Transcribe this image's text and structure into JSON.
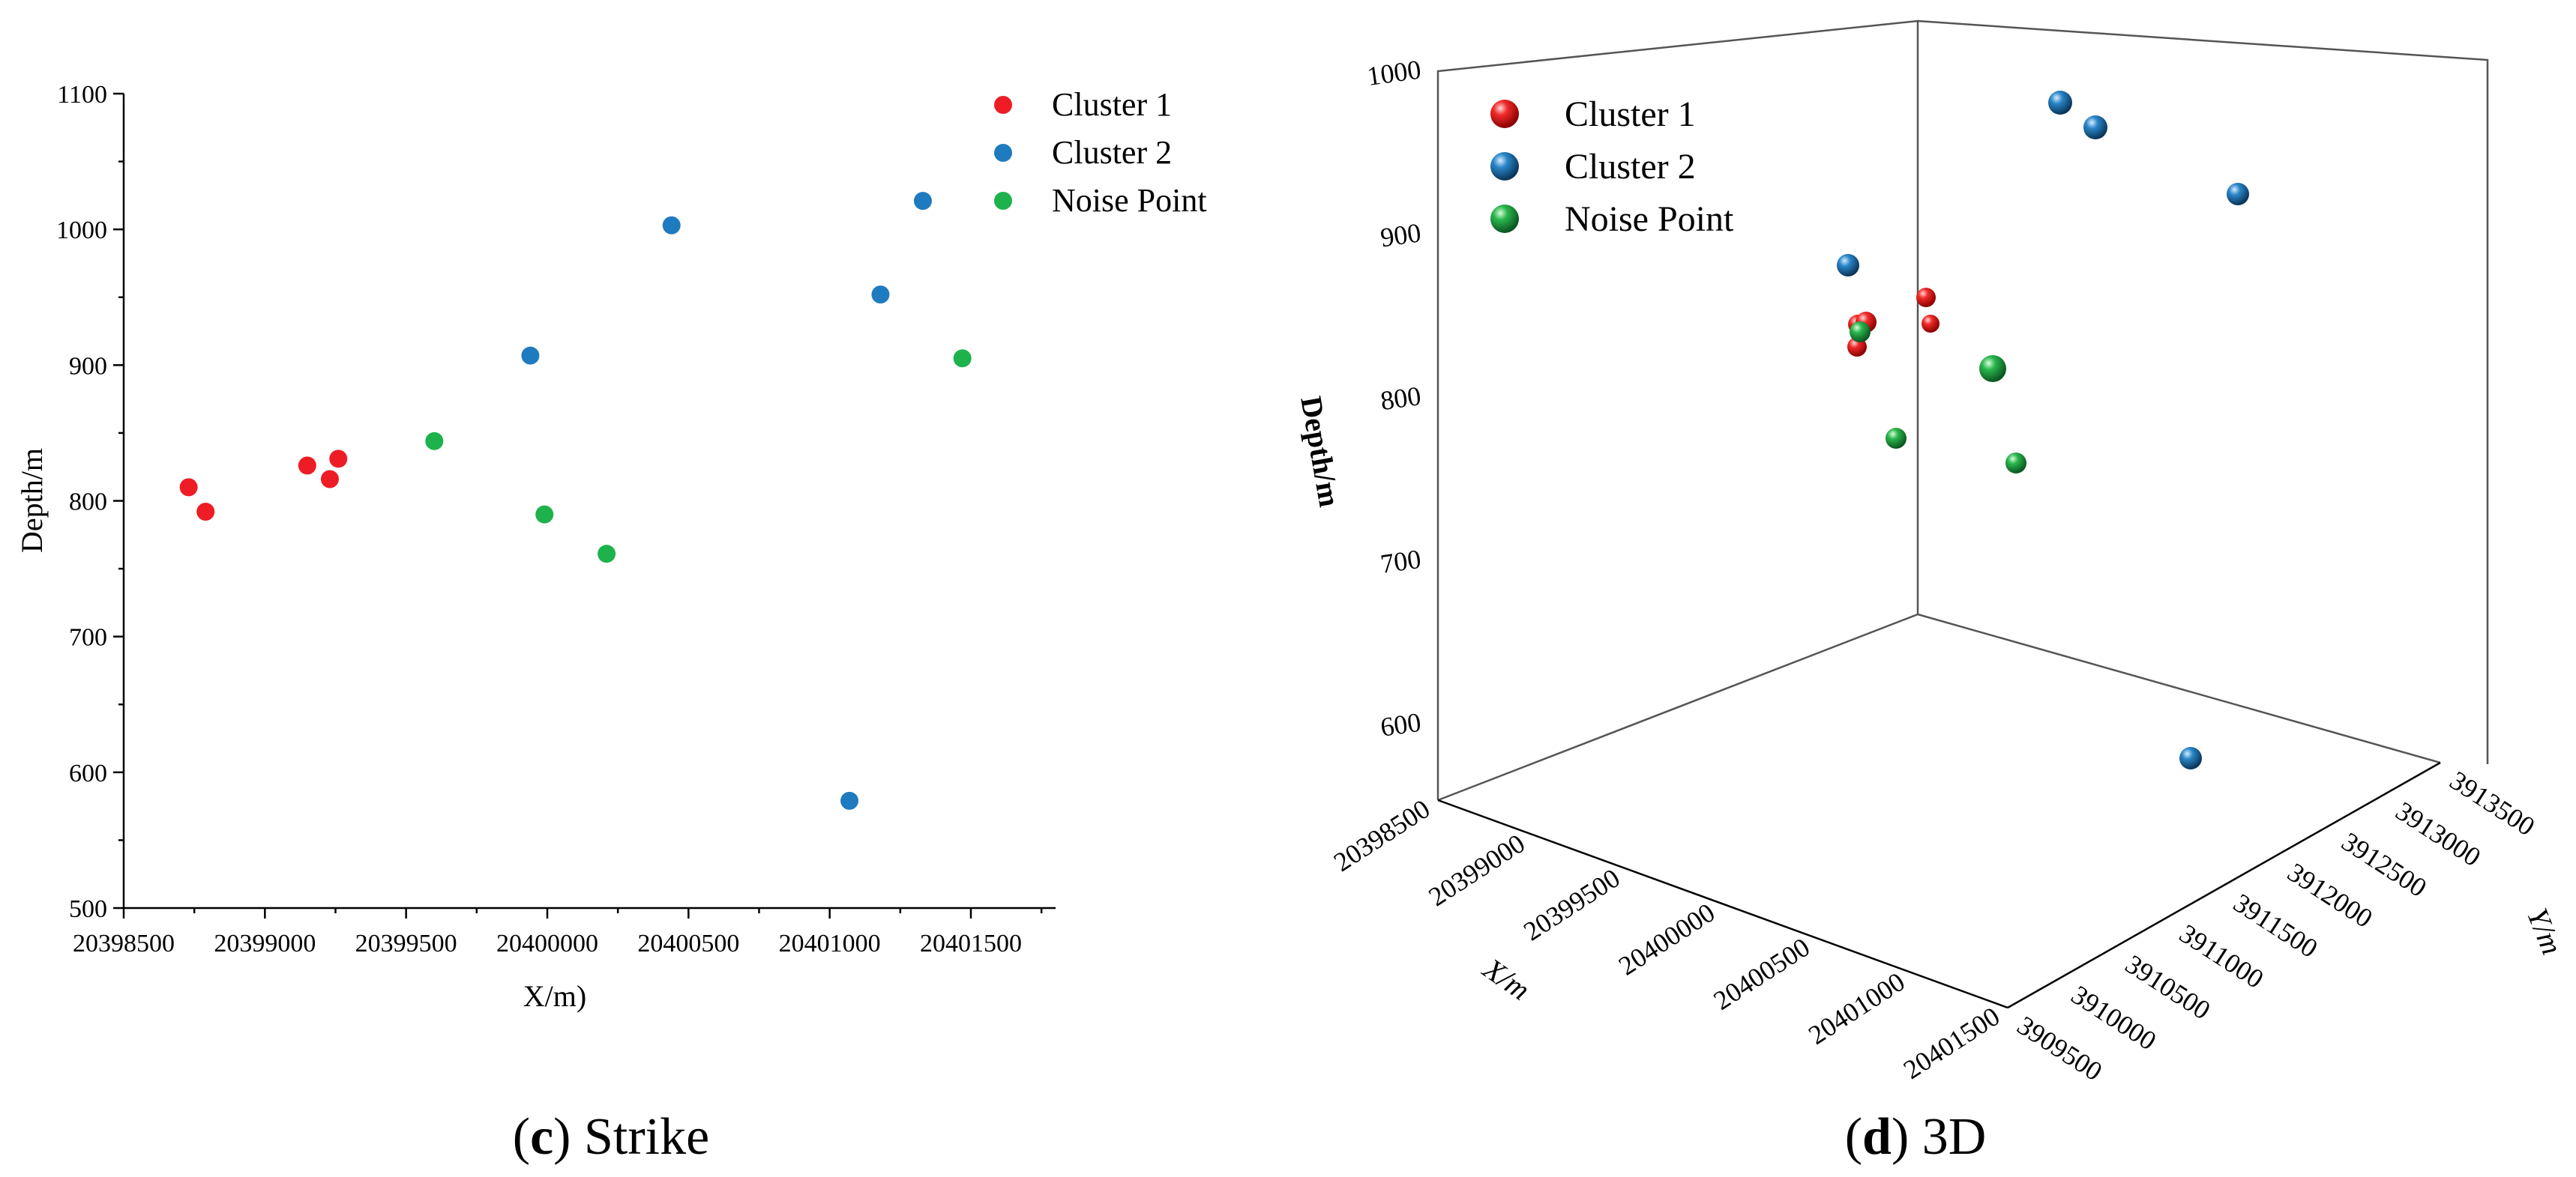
{
  "chart_data": [
    {
      "type": "scatter",
      "panel_caption_letter": "c",
      "panel_caption_text": "Strike",
      "xlabel": "X/m)",
      "ylabel": "Depth/m",
      "xlim": [
        20398500,
        20401800
      ],
      "ylim": [
        500,
        1100
      ],
      "xticks": [
        20398500,
        20399000,
        20399500,
        20400000,
        20400500,
        20401000,
        20401500
      ],
      "xtick_labels": [
        "20398500",
        "20399000",
        "20399500",
        "20400000",
        "20400500",
        "20401000",
        "20401500"
      ],
      "yticks": [
        500,
        600,
        700,
        800,
        900,
        1000,
        1100
      ],
      "ytick_labels": [
        "500",
        "600",
        "700",
        "800",
        "900",
        "1000",
        "1100"
      ],
      "legend_position": "top-right",
      "series": [
        {
          "name": "Cluster 1",
          "color": "#ee1c25",
          "points": [
            [
              20398730,
              810
            ],
            [
              20398790,
              792
            ],
            [
              20399150,
              826
            ],
            [
              20399230,
              816
            ],
            [
              20399260,
              831
            ]
          ]
        },
        {
          "name": "Cluster 2",
          "color": "#1f7bbf",
          "points": [
            [
              20399940,
              907
            ],
            [
              20400440,
              1003
            ],
            [
              20401070,
              579
            ],
            [
              20401180,
              952
            ],
            [
              20401330,
              1021
            ]
          ]
        },
        {
          "name": "Noise Point",
          "color": "#1db24b",
          "points": [
            [
              20399600,
              844
            ],
            [
              20399990,
              790
            ],
            [
              20400210,
              761
            ],
            [
              20401470,
              905
            ]
          ]
        }
      ]
    },
    {
      "type": "scatter3d",
      "panel_caption_letter": "d",
      "panel_caption_text": "3D",
      "xlabel": "X/m",
      "ylabel": "Y/m",
      "zlabel": "Depth/m",
      "xtick_labels": [
        "20398500",
        "20399000",
        "20399500",
        "20400000",
        "20400500",
        "20401000",
        "20401500"
      ],
      "ytick_labels": [
        "3909500",
        "3910000",
        "3910500",
        "3911000",
        "3911500",
        "3912000",
        "3912500",
        "3913000",
        "3913500"
      ],
      "ztick_labels": [
        "600",
        "700",
        "800",
        "900",
        "1000"
      ],
      "legend_position": "top-left",
      "series": [
        {
          "name": "Cluster 1",
          "color": "#e3141c",
          "points": [
            [
              20398600,
              3913300,
              867
            ],
            [
              20398650,
              3913300,
              868
            ],
            [
              20398580,
              3913250,
              852
            ],
            [
              20398900,
              3913000,
              884
            ],
            [
              20398980,
              3912950,
              866
            ]
          ]
        },
        {
          "name": "Cluster 2",
          "color": "#1f78b4",
          "points": [
            [
              20398550,
              3913100,
              905
            ],
            [
              20399650,
              3912800,
              1008
            ],
            [
              20399750,
              3912600,
              993
            ],
            [
              20400200,
              3912100,
              951
            ],
            [
              20401100,
              3912800,
              578
            ]
          ]
        },
        {
          "name": "Noise Point",
          "color": "#22a84a",
          "points": [
            [
              20398550,
              3913200,
              861
            ],
            [
              20399000,
              3913000,
              792
            ],
            [
              20399500,
              3912550,
              837
            ],
            [
              20399600,
              3912600,
              776
            ]
          ]
        }
      ]
    }
  ]
}
